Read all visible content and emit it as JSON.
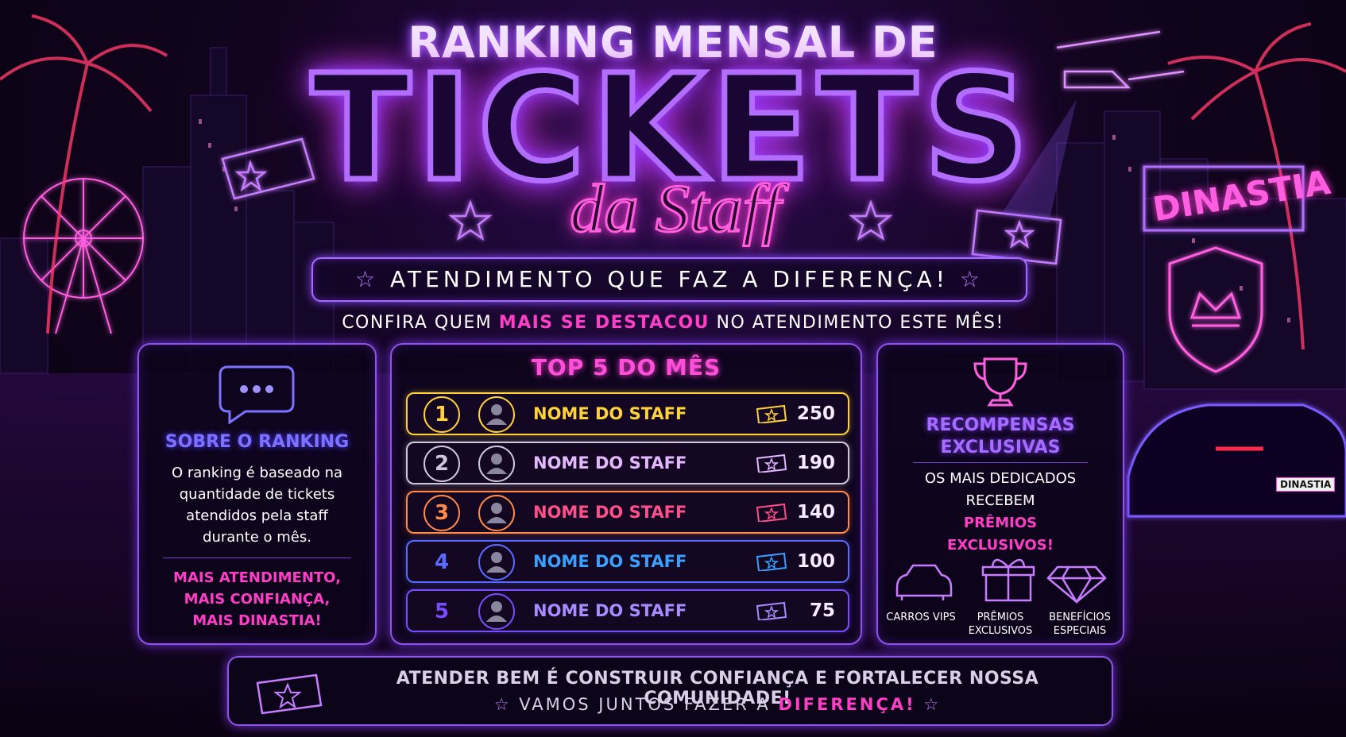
{
  "header": {
    "title_top": "RANKING MENSAL DE",
    "title_main": "TICKETS",
    "title_script": "da Staff",
    "tagline": "ATENDIMENTO QUE FAZ A DIFERENÇA!",
    "subtitle": {
      "before": "CONFIRA QUEM",
      "highlight": "MAIS SE DESTACOU",
      "after": "NO ATENDIMENTO ESTE MÊS!"
    }
  },
  "sign": "DINASTIA",
  "car_plate": "DINASTIA",
  "about": {
    "title": "SOBRE O RANKING",
    "text": "O ranking é baseado na quantidade de tickets atendidos pela staff durante o mês.",
    "slogan": [
      "MAIS ATENDIMENTO,",
      "MAIS CONFIANÇA,",
      "MAIS DINASTIA!"
    ]
  },
  "ranking": {
    "title": "TOP 5 DO MÊS",
    "rows": [
      {
        "position": 1,
        "name": "NOME DO STAFF",
        "tickets": 250
      },
      {
        "position": 2,
        "name": "NOME DO STAFF",
        "tickets": 190
      },
      {
        "position": 3,
        "name": "NOME DO STAFF",
        "tickets": 140
      },
      {
        "position": 4,
        "name": "NOME DO STAFF",
        "tickets": 100
      },
      {
        "position": 5,
        "name": "NOME DO STAFF",
        "tickets": 75
      }
    ]
  },
  "rewards": {
    "title": [
      "RECOMPENSAS",
      "EXCLUSIVAS"
    ],
    "text": [
      "OS MAIS DEDICADOS",
      "RECEBEM"
    ],
    "highlight": [
      "PRÊMIOS",
      "EXCLUSIVOS!"
    ],
    "items": [
      [
        "CARROS VIPS"
      ],
      [
        "PRÊMIOS",
        "EXCLUSIVOS"
      ],
      [
        "BENEFÍCIOS",
        "ESPECIAIS"
      ]
    ]
  },
  "footer": {
    "line1": "ATENDER BEM É CONSTRUIR CONFIANÇA E FORTALECER NOSSA COMUNIDADE!",
    "line2": {
      "before": "VAMOS JUNTOS FAZER A",
      "highlight": "DIFERENÇA!"
    }
  }
}
